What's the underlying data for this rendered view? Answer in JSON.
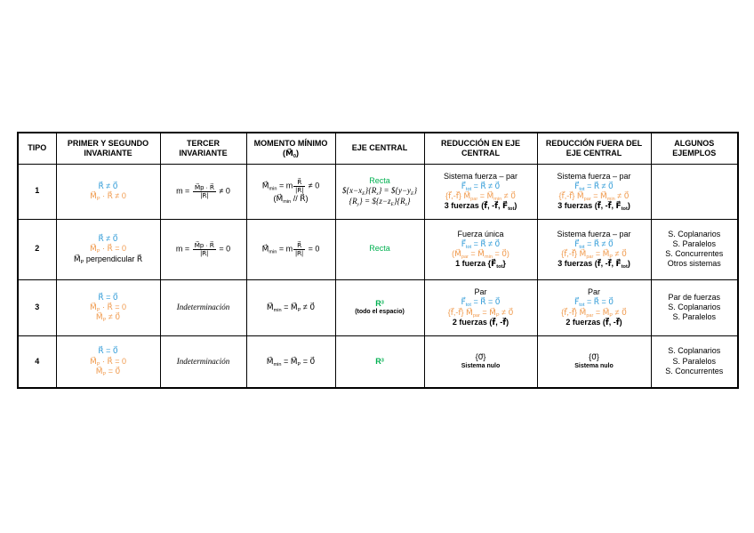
{
  "colors": {
    "blue": "#2e9ad7",
    "orange": "#f09a4d",
    "green": "#00b050",
    "black": "#000000",
    "border": "#000000",
    "page_background": "#ffffff"
  },
  "table": {
    "headers": [
      [
        {
          "t": "TIPO"
        }
      ],
      [
        {
          "t": "PRIMER Y SEGUNDO INVARIANTE"
        }
      ],
      [
        {
          "t": "TERCER INVARIANTE"
        }
      ],
      [
        {
          "t": "MOMENTO MÍNIMO (M⃗~{0})"
        }
      ],
      [
        {
          "t": "EJE CENTRAL"
        }
      ],
      [
        {
          "t": "REDUCCIÓN EN EJE CENTRAL"
        }
      ],
      [
        {
          "t": "REDUCCIÓN FUERA DEL EJE CENTRAL"
        }
      ],
      [
        {
          "t": "ALGUNOS EJEMPLOS"
        }
      ]
    ],
    "rows": [
      {
        "tipo": "1",
        "cells": {
          "invariante": [
            {
              "t": "R⃗ ≠ 0⃗",
              "c": "blue"
            },
            {
              "t": "M⃗~{P} · R⃗ ≠ 0",
              "c": "orange"
            }
          ],
          "tercer": [
            {
              "t": "m = ${M⃗p · R⃗}{|R⃗|} ≠ 0"
            }
          ],
          "momento": [
            {
              "t": "M⃗~{min} = m${R⃗}{|R⃗|} ≠ 0"
            },
            {
              "t": "(M⃗~{min} // R⃗)"
            }
          ],
          "eje": [
            {
              "t": "Recta",
              "c": "green"
            },
            {
              "t": "${x−x~{E}}{R~{x}} = ${y−y~{E}}{R~{y}} = ${z−z~{E}}{R~{z}}",
              "i": 1
            }
          ],
          "red_eje": [
            {
              "t": "Sistema fuerza – par"
            },
            {
              "t": "F⃗~{tot} = R⃗ ≠ 0⃗",
              "c": "blue"
            },
            {
              "t": "{f⃗,-f⃗} M⃗~{par} = M⃗~{min} ≠ 0⃗",
              "c": "orange"
            },
            {
              "t": "3 fuerzas (f⃗, -f⃗, F⃗~{tot})",
              "b": 1
            }
          ],
          "red_fuera": [
            {
              "t": "Sistema fuerza – par"
            },
            {
              "t": "F⃗~{tot} = R⃗ ≠ 0⃗",
              "c": "blue"
            },
            {
              "t": "{f⃗,-f⃗} M⃗~{par} = M⃗~{min} ≠ 0⃗",
              "c": "orange"
            },
            {
              "t": "3 fuerzas (f⃗, -f⃗, F⃗~{tot})",
              "b": 1
            }
          ],
          "ejemplos": []
        }
      },
      {
        "tipo": "2",
        "cells": {
          "invariante": [
            {
              "t": "R⃗ ≠ 0⃗",
              "c": "blue"
            },
            {
              "t": "M⃗~{P} · R⃗ = 0",
              "c": "orange"
            },
            {
              "t": "M⃗~{P} perpendicular R⃗"
            }
          ],
          "tercer": [
            {
              "t": "m = ${M⃗p · R⃗}{|R⃗|} = 0"
            }
          ],
          "momento": [
            {
              "t": "M⃗~{min} = m${R⃗}{|R⃗|} = 0"
            }
          ],
          "eje": [
            {
              "t": "Recta",
              "c": "green"
            }
          ],
          "red_eje": [
            {
              "t": "Fuerza única"
            },
            {
              "t": "F⃗~{tot} = R⃗ ≠ 0⃗",
              "c": "blue"
            },
            {
              "t": "(M⃗~{par} = M⃗~{min} = 0⃗)",
              "c": "orange"
            },
            {
              "t": "1 fuerza  {F⃗~{tot}}",
              "b": 1
            }
          ],
          "red_fuera": [
            {
              "t": "Sistema fuerza – par"
            },
            {
              "t": "F⃗~{tot} = R⃗ ≠ 0⃗",
              "c": "blue"
            },
            {
              "t": "{f⃗,-f⃗} M⃗~{par} = M⃗~{P} ≠ 0⃗",
              "c": "orange"
            },
            {
              "t": "3 fuerzas (f⃗, -f⃗, F⃗~{tot})",
              "b": 1
            }
          ],
          "ejemplos": [
            {
              "t": "S. Coplanarios"
            },
            {
              "t": "S. Paralelos"
            },
            {
              "t": "S. Concurrentes"
            },
            {
              "t": "Otros sistemas"
            }
          ]
        }
      },
      {
        "tipo": "3",
        "cells": {
          "invariante": [
            {
              "t": "R⃗ = 0⃗",
              "c": "blue"
            },
            {
              "t": "M⃗~{P} · R⃗ = 0",
              "c": "orange"
            },
            {
              "t": "M⃗~{P} ≠ 0⃗",
              "c": "orange"
            }
          ],
          "tercer": [
            {
              "t": "Indeterminación",
              "i": 1
            }
          ],
          "momento": [
            {
              "t": "M⃗~{min} = M⃗~{P} ≠ 0⃗"
            }
          ],
          "eje": [
            {
              "t": "R^{3}",
              "c": "green",
              "b": 1
            },
            {
              "t": "(todo el espacio)",
              "s": 1,
              "b": 1
            }
          ],
          "red_eje": [
            {
              "t": "Par"
            },
            {
              "t": "F⃗~{tot} = R⃗ = 0⃗",
              "c": "blue"
            },
            {
              "t": "{f⃗,-f⃗} M⃗~{par} = M⃗~{P} ≠ 0⃗",
              "c": "orange"
            },
            {
              "t": "2 fuerzas (f⃗, -f⃗)",
              "b": 1
            }
          ],
          "red_fuera": [
            {
              "t": "Par"
            },
            {
              "t": "F⃗~{tot} = R⃗ = 0⃗",
              "c": "blue"
            },
            {
              "t": "{f⃗,-f⃗} M⃗~{par} = M⃗~{P} ≠ 0⃗",
              "c": "orange"
            },
            {
              "t": "2 fuerzas (f⃗, -f⃗)",
              "b": 1
            }
          ],
          "ejemplos": [
            {
              "t": "Par de fuerzas"
            },
            {
              "t": "S. Coplanarios"
            },
            {
              "t": "S. Paralelos"
            }
          ]
        }
      },
      {
        "tipo": "4",
        "cells": {
          "invariante": [
            {
              "t": "R⃗ = 0⃗",
              "c": "blue"
            },
            {
              "t": "M⃗~{P} · R⃗ = 0",
              "c": "orange"
            },
            {
              "t": "M⃗~{P} = 0⃗",
              "c": "orange"
            }
          ],
          "tercer": [
            {
              "t": "Indeterminación",
              "i": 1
            }
          ],
          "momento": [
            {
              "t": "M⃗~{min} = M⃗~{P} = 0⃗"
            }
          ],
          "eje": [
            {
              "t": "R^{3}",
              "c": "green",
              "b": 1
            }
          ],
          "red_eje": [
            {
              "t": "{0⃗}"
            },
            {
              "t": "Sistema nulo",
              "s": 1,
              "b": 1
            }
          ],
          "red_fuera": [
            {
              "t": "{0⃗}"
            },
            {
              "t": "Sistema nulo",
              "s": 1,
              "b": 1
            }
          ],
          "ejemplos": [
            {
              "t": "S. Coplanarios"
            },
            {
              "t": "S. Paralelos"
            },
            {
              "t": "S. Concurrentes"
            }
          ]
        }
      }
    ]
  }
}
